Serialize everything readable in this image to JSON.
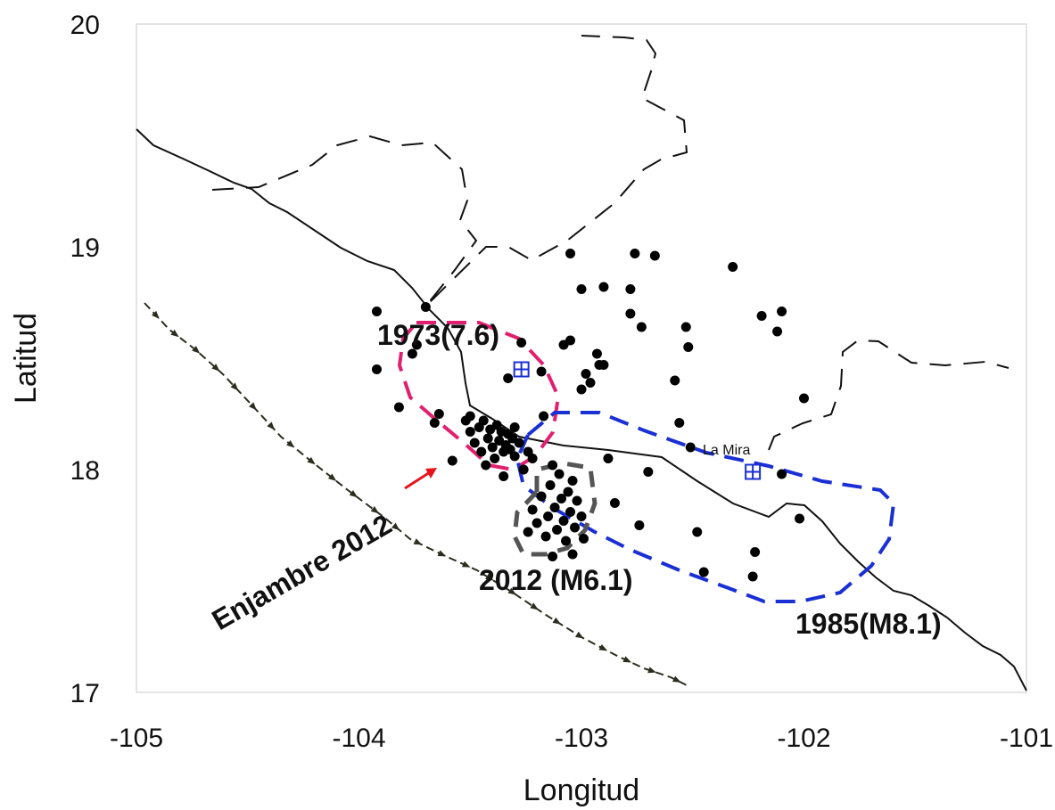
{
  "chart_data": {
    "type": "scatter",
    "title": "",
    "xlabel": "Longitud",
    "ylabel": "Latitud",
    "xlim": [
      -105,
      -101
    ],
    "ylim": [
      17,
      20
    ],
    "x_ticks": [
      "-105",
      "-104",
      "-103",
      "-102",
      "-101"
    ],
    "y_ticks": [
      "17",
      "18",
      "19",
      "20"
    ],
    "grid": false,
    "epicenters": [
      [
        -103.92,
        18.71
      ],
      [
        -103.92,
        18.45
      ],
      [
        -103.82,
        18.28
      ],
      [
        -103.76,
        18.52
      ],
      [
        -103.74,
        18.56
      ],
      [
        -103.7,
        18.73
      ],
      [
        -103.66,
        18.21
      ],
      [
        -103.64,
        18.25
      ],
      [
        -103.58,
        18.04
      ],
      [
        -103.52,
        18.22
      ],
      [
        -103.5,
        18.24
      ],
      [
        -103.5,
        18.17
      ],
      [
        -103.48,
        18.12
      ],
      [
        -103.46,
        18.19
      ],
      [
        -103.45,
        18.08
      ],
      [
        -103.44,
        18.22
      ],
      [
        -103.43,
        18.02
      ],
      [
        -103.42,
        18.14
      ],
      [
        -103.41,
        18.18
      ],
      [
        -103.4,
        18.1
      ],
      [
        -103.39,
        18.05
      ],
      [
        -103.38,
        18.2
      ],
      [
        -103.37,
        18.13
      ],
      [
        -103.36,
        18.17
      ],
      [
        -103.35,
        18.08
      ],
      [
        -103.34,
        18.11
      ],
      [
        -103.33,
        18.16
      ],
      [
        -103.32,
        18.09
      ],
      [
        -103.31,
        18.14
      ],
      [
        -103.3,
        18.19
      ],
      [
        -103.3,
        18.06
      ],
      [
        -103.28,
        18.12
      ],
      [
        -103.35,
        17.97
      ],
      [
        -103.33,
        18.41
      ],
      [
        -103.27,
        18.57
      ],
      [
        -103.26,
        18.0
      ],
      [
        -103.24,
        18.08
      ],
      [
        -103.22,
        18.05
      ],
      [
        -103.18,
        18.44
      ],
      [
        -103.17,
        18.24
      ],
      [
        -103.13,
        18.02
      ],
      [
        -103.08,
        18.56
      ],
      [
        -103.05,
        18.58
      ],
      [
        -103.05,
        18.97
      ],
      [
        -103.0,
        18.81
      ],
      [
        -103.0,
        18.36
      ],
      [
        -102.98,
        18.43
      ],
      [
        -102.96,
        18.39
      ],
      [
        -102.93,
        18.52
      ],
      [
        -102.92,
        18.47
      ],
      [
        -102.9,
        18.82
      ],
      [
        -102.9,
        18.47
      ],
      [
        -102.88,
        18.05
      ],
      [
        -102.78,
        18.81
      ],
      [
        -102.78,
        18.7
      ],
      [
        -102.76,
        18.97
      ],
      [
        -102.73,
        18.64
      ],
      [
        -102.67,
        18.96
      ],
      [
        -102.58,
        18.4
      ],
      [
        -102.56,
        18.21
      ],
      [
        -102.53,
        18.64
      ],
      [
        -102.52,
        18.55
      ],
      [
        -102.51,
        18.1
      ],
      [
        -102.32,
        18.91
      ],
      [
        -102.45,
        17.54
      ],
      [
        -102.48,
        17.72
      ],
      [
        -102.19,
        18.69
      ],
      [
        -102.12,
        18.62
      ],
      [
        -102.1,
        18.71
      ],
      [
        -102.1,
        17.98
      ],
      [
        -102.0,
        18.32
      ],
      [
        -102.02,
        17.78
      ],
      [
        -102.22,
        17.63
      ],
      [
        -102.23,
        17.52
      ],
      [
        -102.85,
        17.85
      ],
      [
        -102.74,
        17.75
      ],
      [
        -102.7,
        17.99
      ],
      [
        -103.22,
        17.82
      ],
      [
        -103.2,
        17.76
      ],
      [
        -103.18,
        17.88
      ],
      [
        -103.16,
        17.7
      ],
      [
        -103.15,
        17.79
      ],
      [
        -103.14,
        17.93
      ],
      [
        -103.12,
        17.83
      ],
      [
        -103.11,
        17.73
      ],
      [
        -103.1,
        17.98
      ],
      [
        -103.09,
        17.87
      ],
      [
        -103.08,
        17.77
      ],
      [
        -103.07,
        17.68
      ],
      [
        -103.06,
        17.9
      ],
      [
        -103.05,
        17.81
      ],
      [
        -103.04,
        17.95
      ],
      [
        -103.03,
        17.74
      ],
      [
        -103.02,
        17.86
      ],
      [
        -103.0,
        17.79
      ],
      [
        -102.99,
        17.69
      ],
      [
        -103.04,
        17.62
      ],
      [
        -103.24,
        17.72
      ],
      [
        -103.13,
        17.61
      ]
    ],
    "stations": [
      [
        -103.27,
        18.45
      ],
      [
        -102.23,
        17.99
      ]
    ],
    "annotations": [
      "1973(7.6)",
      "2012 (M6.1)",
      "1985(M8.1)",
      "Enjambre 2012",
      "La Mira"
    ],
    "colors": {
      "rupture_1973": "#e0206e",
      "rupture_1985": "#1a2fd4",
      "rupture_2012": "#555555",
      "arrow": "#e8141c",
      "trench": "#2b2d1e"
    }
  }
}
